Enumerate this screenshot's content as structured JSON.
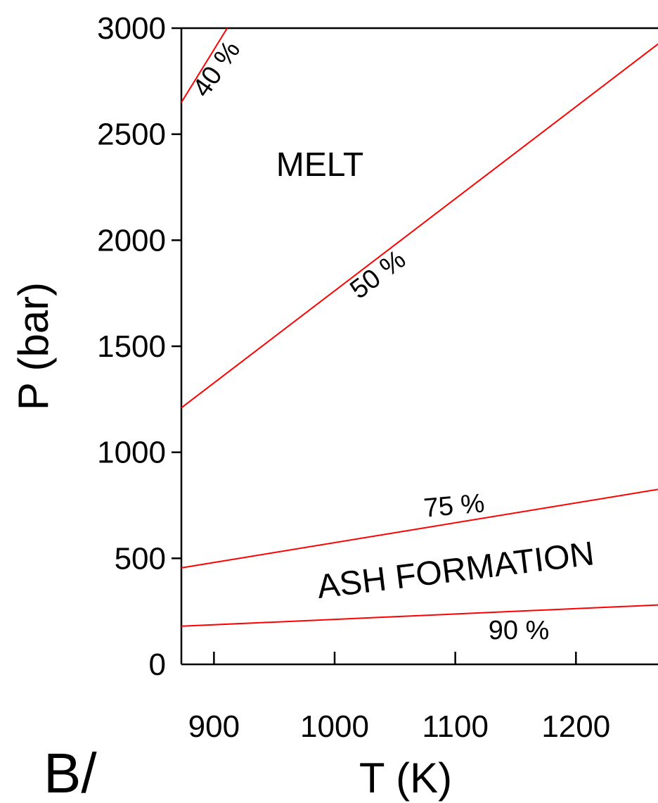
{
  "chart_data": {
    "type": "line",
    "panel_label": "B/",
    "xlabel": "T (K)",
    "ylabel": "P (bar)",
    "xlim": [
      873,
      1268
    ],
    "ylim": [
      0,
      3000
    ],
    "x_ticks": [
      900,
      1000,
      1100,
      1200
    ],
    "y_ticks": [
      0,
      500,
      1000,
      1500,
      2000,
      2500,
      3000
    ],
    "series": [
      {
        "name": "40 %",
        "x": [
          873,
          911
        ],
        "y": [
          2650,
          3000
        ]
      },
      {
        "name": "50 %",
        "x": [
          873,
          1268
        ],
        "y": [
          1210,
          2925
        ]
      },
      {
        "name": "75 %",
        "x": [
          873,
          1268
        ],
        "y": [
          455,
          825
        ]
      },
      {
        "name": "90 %",
        "x": [
          873,
          1268
        ],
        "y": [
          180,
          280
        ]
      }
    ],
    "region_labels": [
      "MELT",
      "ASH  FORMATION"
    ],
    "line_color": "#ff0000",
    "grid": false
  }
}
